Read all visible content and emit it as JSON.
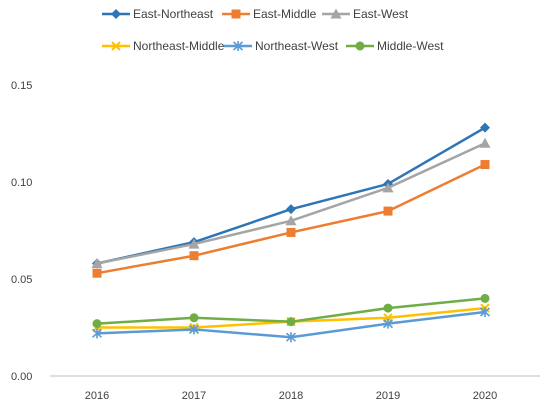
{
  "chart_data": {
    "type": "line",
    "title": "",
    "xlabel": "",
    "ylabel": "",
    "x": [
      "2016",
      "2017",
      "2018",
      "2019",
      "2020"
    ],
    "ylim": [
      0,
      0.15
    ],
    "yticks": [
      "0.00",
      "0.05",
      "0.10",
      "0.15"
    ],
    "grid": false,
    "legend_position": "top",
    "series": [
      {
        "name": "East-Northeast",
        "color": "#2E75B6",
        "marker": "diamond",
        "values": [
          0.058,
          0.069,
          0.086,
          0.099,
          0.128
        ]
      },
      {
        "name": "East-Middle",
        "color": "#ED7D31",
        "marker": "square",
        "values": [
          0.053,
          0.062,
          0.074,
          0.085,
          0.109
        ]
      },
      {
        "name": "East-West",
        "color": "#A5A5A5",
        "marker": "triangle",
        "values": [
          0.058,
          0.068,
          0.08,
          0.097,
          0.12
        ]
      },
      {
        "name": "Northeast-Middle",
        "color": "#FFC000",
        "marker": "x",
        "values": [
          0.025,
          0.025,
          0.028,
          0.03,
          0.035
        ]
      },
      {
        "name": "Northeast-West",
        "color": "#5B9BD5",
        "marker": "star",
        "values": [
          0.022,
          0.024,
          0.02,
          0.027,
          0.033
        ]
      },
      {
        "name": "Middle-West",
        "color": "#70AD47",
        "marker": "circle",
        "values": [
          0.027,
          0.03,
          0.028,
          0.035,
          0.04
        ]
      }
    ]
  }
}
